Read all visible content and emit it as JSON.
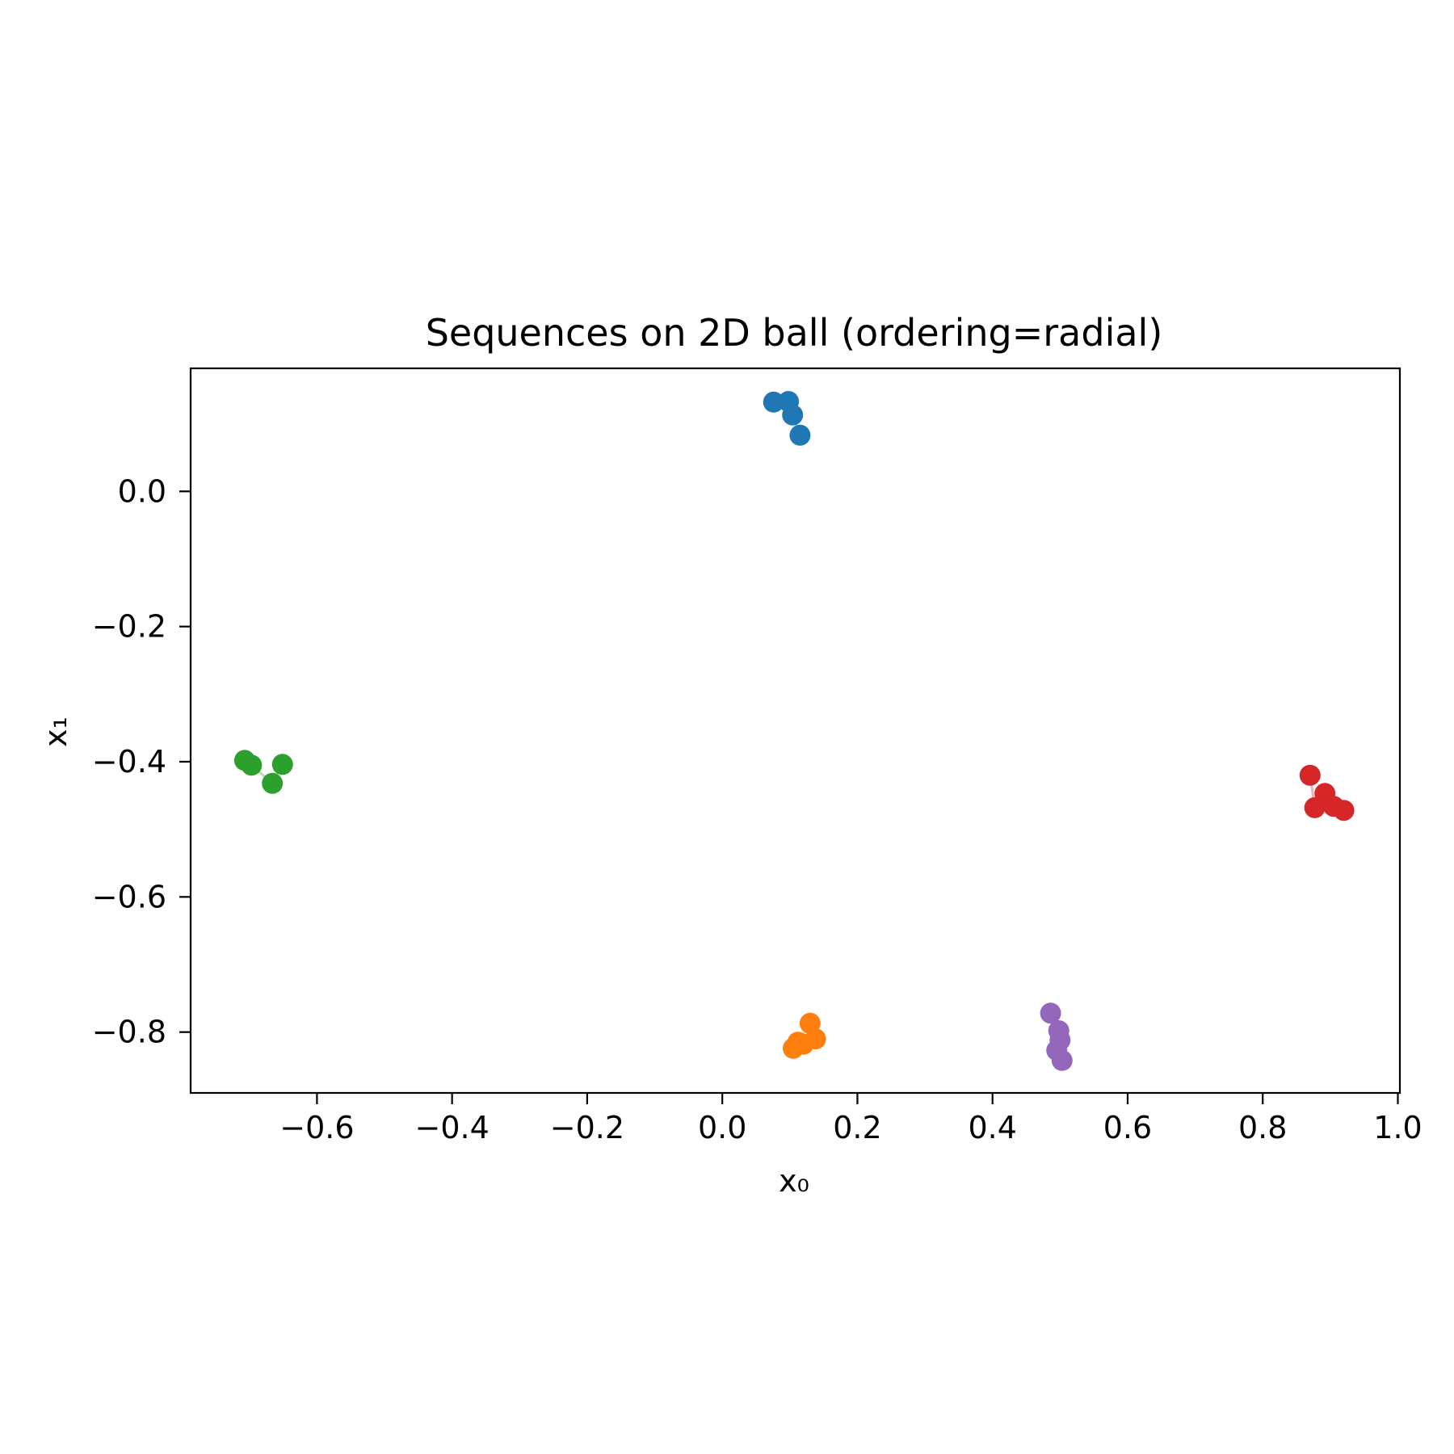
{
  "chart_data": {
    "type": "scatter",
    "title": "Sequences on 2D ball (ordering=radial)",
    "xlabel": "x₀",
    "ylabel": "x₁",
    "xlim": [
      -0.787,
      1.003
    ],
    "ylim": [
      -0.89,
      0.182
    ],
    "xticks": [
      -0.6,
      -0.4,
      -0.2,
      0.0,
      0.2,
      0.4,
      0.6,
      0.8,
      1.0
    ],
    "xtick_labels": [
      "−0.6",
      "−0.4",
      "−0.2",
      "0.0",
      "0.2",
      "0.4",
      "0.6",
      "0.8",
      "1.0"
    ],
    "yticks": [
      0.0,
      -0.2,
      -0.4,
      -0.6,
      -0.8
    ],
    "ytick_labels": [
      "0.0",
      "−0.2",
      "−0.4",
      "−0.6",
      "−0.8"
    ],
    "grid": false,
    "series": [
      {
        "color": "#1f77b4",
        "points": [
          [
            0.076,
            0.132
          ],
          [
            0.098,
            0.133
          ],
          [
            0.104,
            0.113
          ],
          [
            0.115,
            0.083
          ]
        ]
      },
      {
        "color": "#ff7f0e",
        "points": [
          [
            0.105,
            -0.824
          ],
          [
            0.112,
            -0.815
          ],
          [
            0.13,
            -0.787
          ],
          [
            0.138,
            -0.81
          ],
          [
            0.12,
            -0.818
          ]
        ]
      },
      {
        "color": "#2ca02c",
        "points": [
          [
            -0.707,
            -0.398
          ],
          [
            -0.697,
            -0.405
          ],
          [
            -0.666,
            -0.432
          ],
          [
            -0.651,
            -0.404
          ]
        ]
      },
      {
        "color": "#d62728",
        "points": [
          [
            0.87,
            -0.42
          ],
          [
            0.877,
            -0.468
          ],
          [
            0.892,
            -0.447
          ],
          [
            0.905,
            -0.466
          ],
          [
            0.92,
            -0.472
          ]
        ]
      },
      {
        "color": "#9467bd",
        "points": [
          [
            0.486,
            -0.772
          ],
          [
            0.498,
            -0.798
          ],
          [
            0.5,
            -0.812
          ],
          [
            0.495,
            -0.827
          ],
          [
            0.503,
            -0.842
          ]
        ]
      }
    ]
  }
}
